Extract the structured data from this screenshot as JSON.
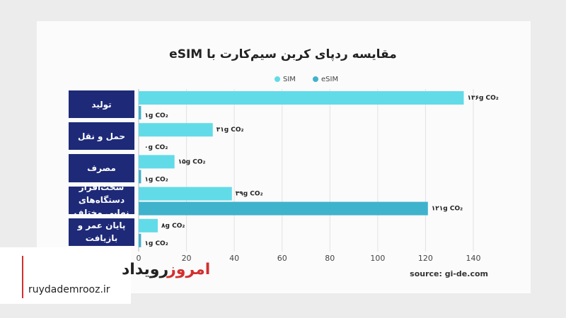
{
  "chart_data": {
    "type": "hbar",
    "title": "مقایسه ردپای کربن سیم‌کارت با eSIM",
    "categories": [
      "تولید",
      "حمل و نقل",
      "مصرف",
      "سخت‌افزار دستگاه‌های نهایی مختلف",
      "پایان عمر و بازیافت"
    ],
    "series": [
      {
        "name": "SIM",
        "color": "#62dbe8",
        "values": [
          136,
          31,
          15,
          39,
          8
        ],
        "value_labels": [
          "۱۳۶g CO₂",
          "۳۱g CO₂",
          "۱۵g CO₂",
          "۳۹g CO₂",
          "۸g CO₂"
        ]
      },
      {
        "name": "eSIM",
        "color": "#3fb3cc",
        "values": [
          1,
          0,
          1,
          121,
          1
        ],
        "value_labels": [
          "۱g CO₂",
          "۰g CO₂",
          "۱g CO₂",
          "۱۲۱g CO₂",
          "۱g CO₂"
        ]
      }
    ],
    "xlim": [
      0,
      140
    ],
    "xticks": [
      0,
      20,
      40,
      60,
      80,
      100,
      120,
      140
    ],
    "grid": true,
    "source": "source: gi-de.com"
  },
  "watermark": {
    "name_part1": "رویداد",
    "name_part2": "امروز",
    "url": "ruydademrooz.ir"
  }
}
